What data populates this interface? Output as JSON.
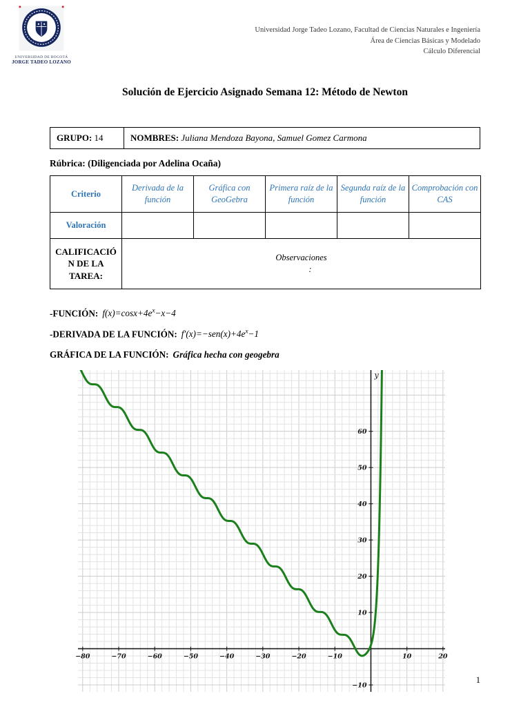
{
  "header": {
    "institution_lines": [
      "Universidad Jorge Tadeo Lozano, Facultad de Ciencias Naturales e Ingeniería",
      "Área de Ciencias Básicas y Modelado",
      "Cálculo Diferencial"
    ],
    "logo": {
      "caption_line1": "UNIVERSIDAD DE BOGOTÁ",
      "caption_line2": "JORGE TADEO LOZANO"
    }
  },
  "title": "Solución de Ejercicio Asignado Semana 12: Método de Newton",
  "group_table": {
    "group_label": "GRUPO:",
    "group_value": "14",
    "names_label": "NOMBRES:",
    "names_value": "Juliana Mendoza Bayona, Samuel Gomez Carmona"
  },
  "rubric": {
    "heading": "Rúbrica: (Diligenciada por Adelina Ocaña)",
    "criterio_header": "Criterio",
    "columns": [
      "Derivada de la función",
      "Gráfica con GeoGebra",
      "Primera raíz de la función",
      "Segunda raíz de la función",
      "Comprobación con CAS"
    ],
    "valoracion_label": "Valoración",
    "calificacion_label": "CALIFICACIÓN DE LA TAREA:",
    "observaciones_label": "Observaciones",
    "observaciones_colon": ":"
  },
  "body": {
    "function": {
      "label": "-FUNCIÓN:",
      "pre": "f(x)=cosx+4e",
      "sup": "x",
      "post": "−x−4"
    },
    "derivative": {
      "label": "-DERIVADA DE LA FUNCIÓN:",
      "pre": "f′(x)=−sen(x)+4e",
      "sup": "x",
      "post": "−1"
    },
    "graph_caption": {
      "label": "GRÁFICA DE LA FUNCIÓN:",
      "note": "Gráfica hecha con geogebra"
    }
  },
  "page_number": "1",
  "chart_data": {
    "type": "line",
    "title": "f(x)=cos(x)+4e^x−x−4",
    "js_expr": "Math.cos(x)+4*Math.exp(x)-x-4",
    "x_range": [
      -81.5,
      3.4
    ],
    "sample_step": 0.05,
    "xlim": [
      -81.3,
      20.6
    ],
    "ylim": [
      -11.9,
      76.9
    ],
    "x_ticks": [
      -80,
      -70,
      -60,
      -50,
      -40,
      -30,
      -20,
      -10,
      10,
      20
    ],
    "y_ticks": [
      -10,
      10,
      20,
      30,
      40,
      50,
      60
    ],
    "grid_step": 2,
    "axis_label_y": "y",
    "curve_color": "#1b7f1b",
    "grid_color": "#e3e3e3",
    "grid_major_color": "#cccccc",
    "axis_color": "#1a1a1a",
    "legend": "none",
    "grid": "on"
  }
}
